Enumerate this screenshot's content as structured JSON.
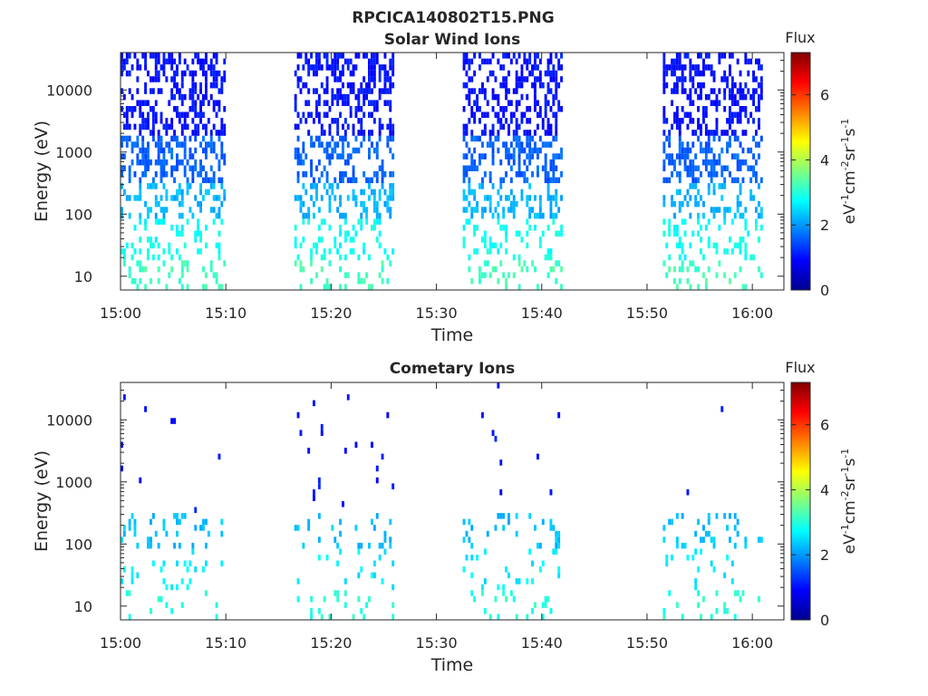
{
  "figure_title": "RPCICA140802T15.PNG",
  "colors": {
    "axis": "#262626",
    "background": "#ffffff",
    "colormap": "jet"
  },
  "chart_data": [
    {
      "type": "heatmap",
      "title": "Solar Wind Ions",
      "xlabel": "Time",
      "ylabel": "Energy (eV)",
      "x_unit": "minutes after 15:00",
      "xlim": [
        0,
        63
      ],
      "x_ticks": [
        0,
        10,
        20,
        30,
        40,
        50,
        60
      ],
      "x_tick_labels": [
        "15:00",
        "15:10",
        "15:20",
        "15:30",
        "15:40",
        "15:50",
        "16:00"
      ],
      "yscale": "log",
      "ylim": [
        6,
        40000
      ],
      "y_ticks": [
        10,
        100,
        1000,
        10000
      ],
      "y_tick_labels": [
        "10",
        "100",
        "1000",
        "10000"
      ],
      "colorbar": {
        "label": "Flux",
        "unit_label": "eV-1cm-2sr-1s-1",
        "range": [
          0,
          7.3
        ],
        "ticks": [
          0,
          2,
          4,
          6
        ]
      },
      "active_intervals_min": [
        [
          0,
          10
        ],
        [
          16.5,
          26
        ],
        [
          32.5,
          42
        ],
        [
          51.5,
          61
        ]
      ],
      "flux_by_energy": [
        {
          "energy_range": [
            6,
            20
          ],
          "flux": 3.2
        },
        {
          "energy_range": [
            20,
            80
          ],
          "flux": 2.8
        },
        {
          "energy_range": [
            80,
            300
          ],
          "flux": 2.2
        },
        {
          "energy_range": [
            300,
            2000
          ],
          "flux": 1.6
        },
        {
          "energy_range": [
            2000,
            40000
          ],
          "flux": 1.0
        }
      ]
    },
    {
      "type": "heatmap",
      "title": "Cometary Ions",
      "xlabel": "Time",
      "ylabel": "Energy (eV)",
      "x_unit": "minutes after 15:00",
      "xlim": [
        0,
        63
      ],
      "x_ticks": [
        0,
        10,
        20,
        30,
        40,
        50,
        60
      ],
      "x_tick_labels": [
        "15:00",
        "15:10",
        "15:20",
        "15:30",
        "15:40",
        "15:50",
        "16:00"
      ],
      "yscale": "log",
      "ylim": [
        6,
        40000
      ],
      "y_ticks": [
        10,
        100,
        1000,
        10000
      ],
      "y_tick_labels": [
        "10",
        "100",
        "1000",
        "10000"
      ],
      "colorbar": {
        "label": "Flux",
        "unit_label": "eV-1cm-2sr-1s-1",
        "range": [
          0,
          7.3
        ],
        "ticks": [
          0,
          2,
          4,
          6
        ]
      },
      "active_intervals_min": [
        [
          0,
          10
        ],
        [
          16.5,
          26
        ],
        [
          32.5,
          42
        ],
        [
          51.5,
          61
        ]
      ],
      "flux_by_energy": [
        {
          "energy_range": [
            6,
            20
          ],
          "flux": 3.0
        },
        {
          "energy_range": [
            20,
            80
          ],
          "flux": 2.6
        },
        {
          "energy_range": [
            80,
            300
          ],
          "flux": 2.3
        },
        {
          "energy_range": [
            300,
            40000
          ],
          "flux": 1.0
        }
      ]
    }
  ]
}
